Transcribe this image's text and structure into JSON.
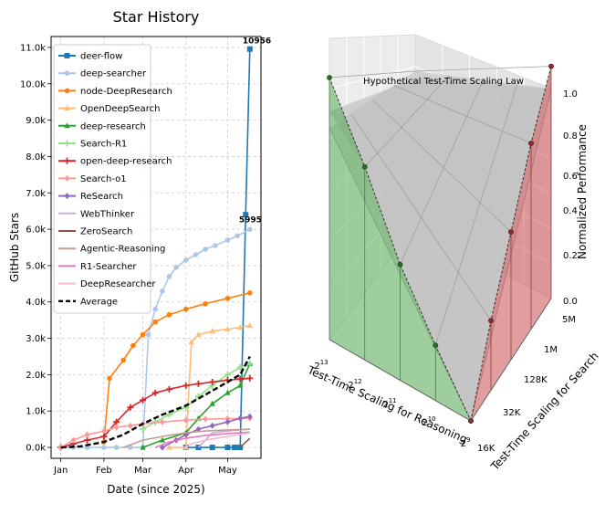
{
  "chart_data": [
    {
      "type": "line",
      "title": "Star History",
      "xlabel": "Date (since 2025)",
      "ylabel": "GitHub Stars",
      "x_ticks": [
        "Jan",
        "Feb",
        "Mar",
        "Apr",
        "May"
      ],
      "y_ticks": [
        "0.0k",
        "1.0k",
        "2.0k",
        "3.0k",
        "4.0k",
        "5.0k",
        "6.0k",
        "7.0k",
        "8.0k",
        "9.0k",
        "10.0k",
        "11.0k"
      ],
      "xlim": [
        "2024-12-25",
        "2025-05-25"
      ],
      "ylim": [
        -300,
        11300
      ],
      "grid": true,
      "legend_position": "upper-left",
      "annotations": [
        "10956",
        "5995"
      ],
      "series": [
        {
          "name": "deer-flow",
          "color": "#1f77b4",
          "marker": "square",
          "x": [
            "2025-04-01",
            "2025-04-10",
            "2025-04-20",
            "2025-05-01",
            "2025-05-06",
            "2025-05-10",
            "2025-05-14",
            "2025-05-17"
          ],
          "y": [
            0,
            0,
            0,
            0,
            0,
            0,
            6400,
            10956
          ]
        },
        {
          "name": "deep-searcher",
          "color": "#aec7e8",
          "marker": "circle",
          "x": [
            "2025-01-01",
            "2025-01-10",
            "2025-01-20",
            "2025-02-01",
            "2025-02-10",
            "2025-02-20",
            "2025-03-01",
            "2025-03-05",
            "2025-03-10",
            "2025-03-15",
            "2025-03-20",
            "2025-03-25",
            "2025-04-01",
            "2025-04-08",
            "2025-04-15",
            "2025-04-22",
            "2025-05-01",
            "2025-05-08",
            "2025-05-17"
          ],
          "y": [
            0,
            0,
            0,
            0,
            0,
            0,
            0,
            3100,
            3800,
            4300,
            4700,
            4950,
            5150,
            5300,
            5450,
            5550,
            5700,
            5820,
            5995
          ]
        },
        {
          "name": "node-DeepResearch",
          "color": "#ff7f0e",
          "marker": "circle",
          "x": [
            "2025-02-01",
            "2025-02-05",
            "2025-02-15",
            "2025-02-22",
            "2025-03-01",
            "2025-03-10",
            "2025-03-20",
            "2025-04-01",
            "2025-04-15",
            "2025-05-01",
            "2025-05-17"
          ],
          "y": [
            150,
            1900,
            2400,
            2800,
            3100,
            3450,
            3650,
            3800,
            3950,
            4100,
            4250
          ]
        },
        {
          "name": "OpenDeepSearch",
          "color": "#ffbb78",
          "marker": "triangle",
          "x": [
            "2025-03-20",
            "2025-04-01",
            "2025-04-05",
            "2025-04-10",
            "2025-04-20",
            "2025-05-01",
            "2025-05-10",
            "2025-05-17"
          ],
          "y": [
            0,
            0,
            2900,
            3100,
            3200,
            3250,
            3300,
            3350
          ]
        },
        {
          "name": "deep-research",
          "color": "#2ca02c",
          "marker": "triangle",
          "x": [
            "2025-03-01",
            "2025-03-15",
            "2025-04-01",
            "2025-04-10",
            "2025-04-20",
            "2025-05-01",
            "2025-05-10",
            "2025-05-17"
          ],
          "y": [
            0,
            200,
            400,
            800,
            1200,
            1500,
            1700,
            2300
          ]
        },
        {
          "name": "Search-R1",
          "color": "#98df8a",
          "marker": "plus",
          "x": [
            "2025-03-01",
            "2025-03-10",
            "2025-03-20",
            "2025-04-01",
            "2025-04-10",
            "2025-04-20",
            "2025-05-01",
            "2025-05-10",
            "2025-05-17"
          ],
          "y": [
            500,
            700,
            900,
            1100,
            1400,
            1700,
            2000,
            2200,
            2300
          ]
        },
        {
          "name": "open-deep-research",
          "color": "#d62728",
          "marker": "plus",
          "x": [
            "2025-01-01",
            "2025-01-10",
            "2025-01-20",
            "2025-02-01",
            "2025-02-10",
            "2025-02-20",
            "2025-03-01",
            "2025-03-10",
            "2025-03-20",
            "2025-04-01",
            "2025-04-10",
            "2025-04-20",
            "2025-05-01",
            "2025-05-10",
            "2025-05-17"
          ],
          "y": [
            0,
            100,
            200,
            300,
            700,
            1100,
            1300,
            1500,
            1600,
            1700,
            1750,
            1800,
            1850,
            1880,
            1900
          ]
        },
        {
          "name": "Search-o1",
          "color": "#ff9896",
          "marker": "diamond",
          "x": [
            "2025-01-01",
            "2025-01-10",
            "2025-01-20",
            "2025-02-01",
            "2025-02-10",
            "2025-02-20",
            "2025-03-01",
            "2025-03-15",
            "2025-04-01",
            "2025-04-15",
            "2025-05-01",
            "2025-05-17"
          ],
          "y": [
            0,
            200,
            350,
            450,
            550,
            600,
            650,
            700,
            750,
            780,
            790,
            800
          ]
        },
        {
          "name": "ReSearch",
          "color": "#9467bd",
          "marker": "diamond",
          "x": [
            "2025-03-15",
            "2025-03-25",
            "2025-04-01",
            "2025-04-10",
            "2025-04-20",
            "2025-05-01",
            "2025-05-10",
            "2025-05-17"
          ],
          "y": [
            0,
            200,
            350,
            500,
            600,
            700,
            800,
            850
          ]
        },
        {
          "name": "WebThinker",
          "color": "#c5b0d5",
          "marker": "none",
          "x": [
            "2025-04-10",
            "2025-04-15",
            "2025-04-20",
            "2025-05-01",
            "2025-05-17"
          ],
          "y": [
            0,
            200,
            400,
            450,
            500
          ]
        },
        {
          "name": "ZeroSearch",
          "color": "#8c564b",
          "marker": "none",
          "x": [
            "2025-05-10",
            "2025-05-17"
          ],
          "y": [
            0,
            250
          ]
        },
        {
          "name": "Agentic-Reasoning",
          "color": "#c49c94",
          "marker": "none",
          "x": [
            "2025-02-15",
            "2025-03-01",
            "2025-03-15",
            "2025-04-01",
            "2025-04-15",
            "2025-05-01",
            "2025-05-17"
          ],
          "y": [
            0,
            200,
            300,
            400,
            450,
            480,
            500
          ]
        },
        {
          "name": "R1-Searcher",
          "color": "#e377c2",
          "marker": "none",
          "x": [
            "2025-03-10",
            "2025-03-20",
            "2025-04-01",
            "2025-04-15",
            "2025-05-01",
            "2025-05-17"
          ],
          "y": [
            0,
            150,
            250,
            330,
            380,
            420
          ]
        },
        {
          "name": "DeepResearcher",
          "color": "#f7b6d2",
          "marker": "none",
          "x": [
            "2025-04-01",
            "2025-04-05",
            "2025-04-15",
            "2025-05-01",
            "2025-05-17"
          ],
          "y": [
            0,
            100,
            200,
            300,
            400
          ]
        },
        {
          "name": "Average",
          "color": "#000000",
          "marker": "none",
          "dashed": true,
          "x": [
            "2025-01-01",
            "2025-01-15",
            "2025-02-01",
            "2025-02-15",
            "2025-03-01",
            "2025-03-15",
            "2025-04-01",
            "2025-04-15",
            "2025-05-01",
            "2025-05-10",
            "2025-05-17"
          ],
          "y": [
            0,
            30,
            150,
            350,
            650,
            900,
            1150,
            1450,
            1800,
            2000,
            2500
          ]
        }
      ]
    },
    {
      "type": "surface3d",
      "title": "Hypothetical Test-Time Scaling Law",
      "xlabel": "Test-Time Scaling for Reasoning",
      "ylabel": "Test-Time Scaling for Search",
      "zlabel": "Normalized Performance",
      "x_ticks": [
        "2^13",
        "2^12",
        "2^11",
        "2^10",
        "2^9"
      ],
      "y_ticks": [
        "16K",
        "32K",
        "128K",
        "1M",
        "5M"
      ],
      "z_ticks": [
        "0.0",
        "0.2",
        "0.4",
        "0.6",
        "0.8",
        "1.0"
      ],
      "colors": {
        "surface": "#c8c8c8",
        "reasoning_slice": "#3aa33a",
        "search_slice": "#d03a3a"
      },
      "reasoning_edge_values": [
        0.95,
        0.7,
        0.42,
        0.2,
        0.0
      ],
      "search_edge_values": [
        0.0,
        0.3,
        0.55,
        0.8,
        1.0
      ]
    }
  ]
}
